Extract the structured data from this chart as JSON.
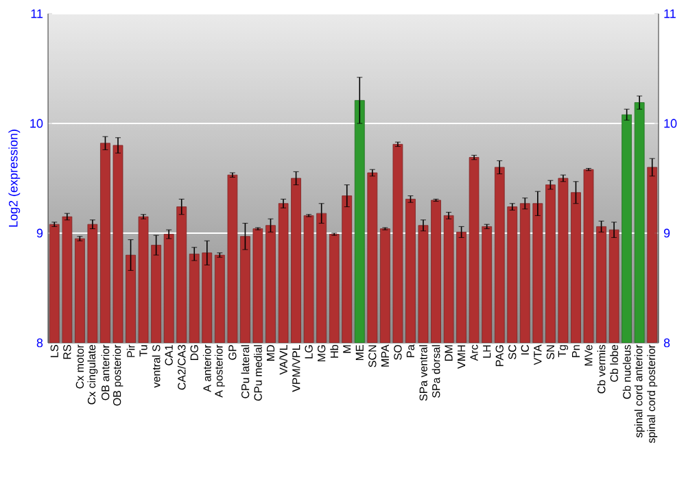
{
  "chart_data": {
    "type": "bar",
    "ylabel": "Log2 (expression)",
    "categories": [
      "LS",
      "RS",
      "Cx motor",
      "Cx cingulate",
      "OB anterior",
      "OB posterior",
      "Pir",
      "Tu",
      "ventral S",
      "CA1",
      "CA2/CA3",
      "DG",
      "A anterior",
      "A posterior",
      "GP",
      "CPu lateral",
      "CPu medial",
      "MD",
      "VA/VL",
      "VPM/VPL",
      "LG",
      "MG",
      "Hb",
      "M",
      "ME",
      "SCN",
      "MPA",
      "SO",
      "Pa",
      "SPa ventral",
      "SPa dorsal",
      "DM",
      "VMH",
      "Arc",
      "LH",
      "PAG",
      "SC",
      "IC",
      "VTA",
      "SN",
      "Tg",
      "Pn",
      "MVe",
      "Cb vermis",
      "Cb lobe",
      "Cb nucleus",
      "spinal cord anterior",
      "spinal cord posterior"
    ],
    "values": [
      9.08,
      9.15,
      8.95,
      9.08,
      9.82,
      9.8,
      8.8,
      9.15,
      8.89,
      8.99,
      9.24,
      8.81,
      8.82,
      8.8,
      9.53,
      8.97,
      9.04,
      9.07,
      9.27,
      9.5,
      9.16,
      9.18,
      8.99,
      9.34,
      10.21,
      9.55,
      9.04,
      9.81,
      9.31,
      9.07,
      9.3,
      9.16,
      9.01,
      9.69,
      9.06,
      9.6,
      9.24,
      9.27,
      9.27,
      9.44,
      9.5,
      9.37,
      9.58,
      9.06,
      9.03,
      10.08,
      10.19,
      9.6
    ],
    "errors": [
      0.02,
      0.03,
      0.02,
      0.04,
      0.06,
      0.07,
      0.14,
      0.02,
      0.09,
      0.04,
      0.07,
      0.06,
      0.11,
      0.02,
      0.02,
      0.12,
      0.01,
      0.06,
      0.04,
      0.06,
      0.01,
      0.09,
      0.01,
      0.1,
      0.21,
      0.03,
      0.01,
      0.02,
      0.03,
      0.05,
      0.01,
      0.03,
      0.05,
      0.02,
      0.02,
      0.06,
      0.03,
      0.05,
      0.11,
      0.04,
      0.03,
      0.1,
      0.01,
      0.05,
      0.07,
      0.05,
      0.06,
      0.08
    ],
    "colors": [
      "#b03030",
      "#b03030",
      "#b03030",
      "#b03030",
      "#b03030",
      "#b03030",
      "#b03030",
      "#b03030",
      "#b03030",
      "#b03030",
      "#b03030",
      "#b03030",
      "#b03030",
      "#b03030",
      "#b03030",
      "#b03030",
      "#b03030",
      "#b03030",
      "#b03030",
      "#b03030",
      "#b03030",
      "#b03030",
      "#b03030",
      "#b03030",
      "#2e9a2e",
      "#b03030",
      "#b03030",
      "#b03030",
      "#b03030",
      "#b03030",
      "#b03030",
      "#b03030",
      "#b03030",
      "#b03030",
      "#b03030",
      "#b03030",
      "#b03030",
      "#b03030",
      "#b03030",
      "#b03030",
      "#b03030",
      "#b03030",
      "#b03030",
      "#b03030",
      "#b03030",
      "#2e9a2e",
      "#2e9a2e",
      "#b03030"
    ],
    "ylim": [
      8,
      11
    ],
    "yticks": [
      8,
      9,
      10,
      11
    ],
    "y2lim": [
      8,
      11
    ],
    "y2ticks": [
      8,
      9,
      10,
      11
    ],
    "grid": "y"
  }
}
